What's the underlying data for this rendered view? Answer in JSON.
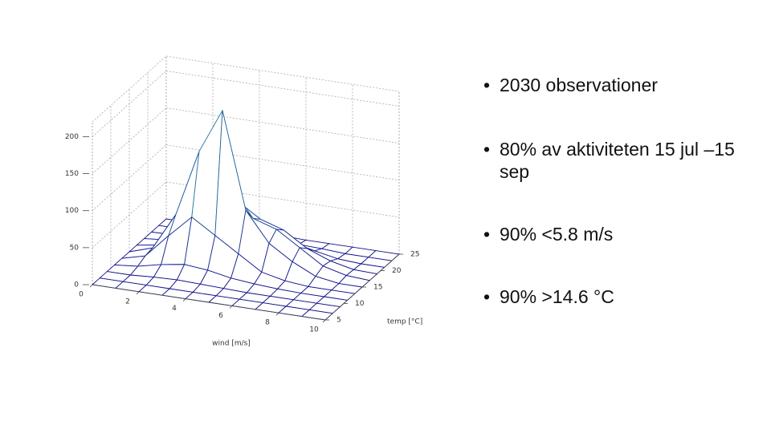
{
  "bullets": [
    "2030 observationer",
    "80% av aktiviteten 15 jul –15 sep",
    "90% <5.8 m/s",
    "90% >14.6 °C"
  ],
  "chart_data": {
    "type": "surface",
    "xlabel": "wind [m/s]",
    "ylabel": "temp [°C]",
    "x": [
      0,
      1,
      2,
      3,
      4,
      5,
      6,
      7,
      8,
      9,
      10
    ],
    "y": [
      5,
      7,
      9,
      11,
      13,
      15,
      17,
      19,
      21,
      23,
      25
    ],
    "z": [
      [
        0,
        0,
        0,
        0,
        0,
        0,
        0,
        0,
        0,
        0,
        0
      ],
      [
        0,
        0,
        0,
        0,
        0,
        0,
        0,
        0,
        0,
        0,
        0
      ],
      [
        0,
        0,
        2,
        3,
        2,
        1,
        0,
        0,
        0,
        0,
        0
      ],
      [
        0,
        3,
        10,
        15,
        12,
        6,
        3,
        1,
        0,
        0,
        0
      ],
      [
        0,
        8,
        40,
        70,
        50,
        30,
        10,
        3,
        0,
        0,
        0
      ],
      [
        0,
        10,
        60,
        150,
        210,
        80,
        40,
        20,
        5,
        0,
        0
      ],
      [
        0,
        5,
        70,
        140,
        100,
        60,
        50,
        30,
        10,
        2,
        0
      ],
      [
        0,
        3,
        30,
        60,
        70,
        50,
        40,
        20,
        8,
        1,
        0
      ],
      [
        0,
        1,
        10,
        20,
        25,
        20,
        15,
        8,
        2,
        0,
        0
      ],
      [
        0,
        0,
        2,
        5,
        6,
        5,
        3,
        2,
        0,
        0,
        0
      ],
      [
        0,
        0,
        0,
        1,
        1,
        1,
        0,
        0,
        0,
        0,
        0
      ]
    ],
    "xlim": [
      0,
      10
    ],
    "ylim": [
      5,
      25
    ],
    "zlim": [
      0,
      220
    ],
    "xticks": [
      0,
      2,
      4,
      6,
      8,
      10
    ],
    "yticks": [
      5,
      10,
      15,
      20,
      25
    ],
    "zticks": [
      0,
      50,
      100,
      150,
      200
    ],
    "grid": true
  }
}
